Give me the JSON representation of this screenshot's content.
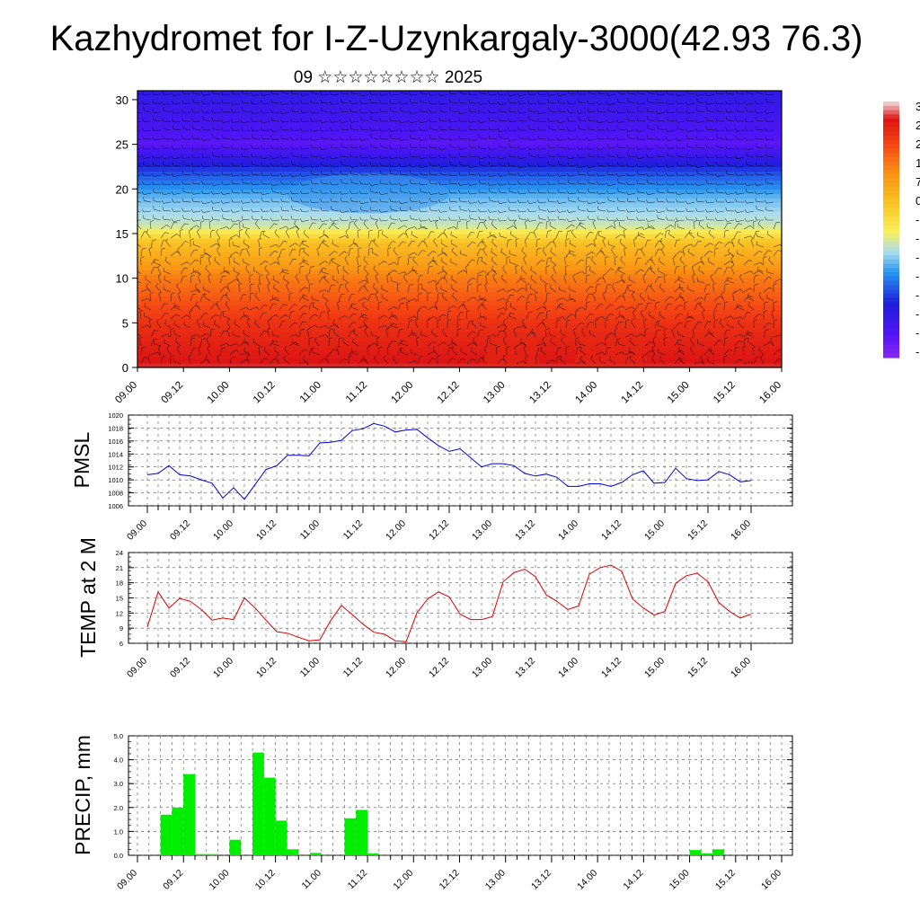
{
  "title": "Kazhydromet for I-Z-Uzynkargaly-3000(42.93 76.3)",
  "subtitle": "09 ☆☆☆☆☆☆☆☆ 2025",
  "time_labels": [
    "09.00",
    "09.12",
    "10.00",
    "10.12",
    "11.00",
    "11.12",
    "12.00",
    "12.12",
    "13.00",
    "13.12",
    "14.00",
    "14.12",
    "15.00",
    "15.12",
    "16.00"
  ],
  "colors": {
    "pmsl": "#0000dd",
    "temp": "#dd0000",
    "precip": "#00ee00"
  },
  "chart_data": [
    {
      "id": "cross-section",
      "type": "heatmap",
      "y_ticks": [
        0,
        5,
        10,
        15,
        20,
        25,
        30
      ],
      "ylim": [
        0,
        31
      ],
      "colorbar_ticks": [
        "3",
        "2",
        "2",
        "1",
        "7",
        "0",
        "-",
        "-",
        "-",
        "-",
        "-",
        "-",
        "-",
        "-"
      ],
      "level_profile": [
        {
          "y": 0,
          "v": 0.95
        },
        {
          "y": 5,
          "v": 0.88
        },
        {
          "y": 10,
          "v": 0.76
        },
        {
          "y": 14,
          "v": 0.62
        },
        {
          "y": 16,
          "v": 0.45
        },
        {
          "y": 19,
          "v": 0.38
        },
        {
          "y": 22,
          "v": 0.26
        },
        {
          "y": 24,
          "v": 0.14
        },
        {
          "y": 25,
          "v": 0.08
        },
        {
          "y": 27,
          "v": 0.12
        },
        {
          "y": 31,
          "v": 0.18
        }
      ]
    },
    {
      "id": "pmsl",
      "type": "line",
      "ylabel": "PMSL",
      "ylim": [
        1006,
        1020
      ],
      "y_ticks": [
        1006,
        1008,
        1010,
        1012,
        1014,
        1016,
        1018,
        1020
      ],
      "x_step_hours": 3,
      "values": [
        1010.8,
        1011.0,
        1012.2,
        1010.8,
        1010.6,
        1010.0,
        1009.5,
        1007.2,
        1008.8,
        1007.0,
        1009.3,
        1011.6,
        1012.2,
        1013.8,
        1013.8,
        1013.7,
        1015.7,
        1015.8,
        1016.1,
        1017.6,
        1017.9,
        1018.7,
        1018.3,
        1017.4,
        1017.7,
        1017.8,
        1016.5,
        1015.3,
        1014.4,
        1014.8,
        1013.4,
        1012.0,
        1012.5,
        1012.5,
        1012.2,
        1011.0,
        1010.6,
        1010.9,
        1010.4,
        1009.0,
        1009.0,
        1009.4,
        1009.4,
        1009.0,
        1009.6,
        1010.8,
        1011.4,
        1009.5,
        1009.6,
        1011.8,
        1010.2,
        1009.9,
        1010.0,
        1011.3,
        1010.8,
        1009.7,
        1009.9
      ]
    },
    {
      "id": "temp",
      "type": "line",
      "ylabel": "TEMP at 2 M",
      "ylim": [
        6,
        24
      ],
      "y_ticks": [
        6,
        9,
        12,
        15,
        18,
        21,
        24
      ],
      "x_step_hours": 3,
      "values": [
        9.2,
        16.2,
        13.0,
        14.9,
        14.3,
        12.7,
        10.6,
        11.0,
        10.7,
        15.0,
        13.0,
        10.6,
        8.3,
        8.0,
        7.2,
        6.5,
        6.7,
        10.5,
        13.5,
        11.7,
        9.8,
        8.2,
        7.8,
        6.5,
        6.3,
        12.0,
        14.8,
        16.2,
        15.2,
        11.8,
        10.7,
        10.7,
        11.3,
        18.2,
        20.0,
        20.7,
        19.2,
        15.6,
        14.3,
        12.7,
        13.4,
        19.7,
        21.0,
        21.5,
        20.3,
        14.8,
        13.0,
        11.6,
        12.3,
        17.9,
        19.4,
        19.9,
        18.2,
        14.1,
        12.3,
        11.0,
        11.8
      ]
    },
    {
      "id": "precip",
      "type": "bar",
      "ylabel": "PRECIP, mm",
      "ylim": [
        0,
        5
      ],
      "y_ticks": [
        "0.0",
        "1.0",
        "2.0",
        "3.0",
        "4.0",
        "5.0"
      ],
      "x_step_hours": 3,
      "values": [
        0,
        0,
        1.7,
        2.0,
        3.4,
        0.05,
        0.05,
        0,
        0.65,
        0,
        4.3,
        3.25,
        1.45,
        0.25,
        0,
        0.1,
        0,
        0,
        1.55,
        1.9,
        0.08,
        0,
        0,
        0,
        0,
        0,
        0,
        0,
        0,
        0,
        0,
        0,
        0,
        0,
        0,
        0,
        0,
        0,
        0,
        0,
        0,
        0,
        0,
        0,
        0,
        0,
        0,
        0,
        0.22,
        0.08,
        0.25,
        0,
        0,
        0,
        0,
        0
      ]
    }
  ]
}
